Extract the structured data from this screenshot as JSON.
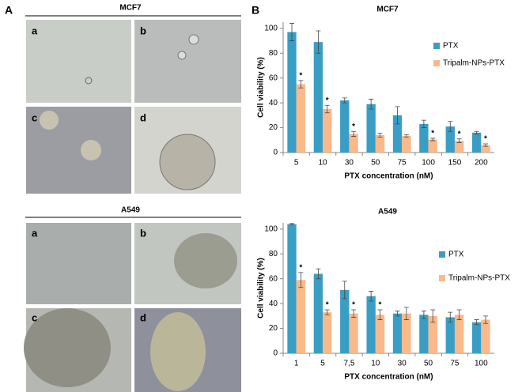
{
  "labels": {
    "a_panel": "A",
    "b_panel": "B"
  },
  "panels": [
    {
      "title": "MCF7",
      "images": [
        "a",
        "b",
        "c",
        "d"
      ]
    },
    {
      "title": "A549",
      "images": [
        "a",
        "b",
        "c",
        "d"
      ]
    }
  ],
  "chart_data": [
    {
      "type": "bar",
      "title": "MCF7",
      "x_label": "PTX concentration (nM)",
      "y_label": "Cell viability (%)",
      "categories": [
        "5",
        "10",
        "30",
        "50",
        "75",
        "100",
        "150",
        "200"
      ],
      "ylim": [
        0,
        105
      ],
      "yticks": [
        0,
        20,
        40,
        60,
        80,
        100
      ],
      "grid": false,
      "series": [
        {
          "name": "PTX",
          "color": "#3a9ec4",
          "values": [
            97,
            89,
            42,
            39,
            30,
            23,
            21,
            16
          ],
          "errors": [
            7,
            9,
            2,
            4,
            7,
            3,
            4,
            1
          ],
          "annotations": [
            null,
            null,
            null,
            null,
            null,
            null,
            null,
            null
          ]
        },
        {
          "name": "Tripalm-NPs-PTX",
          "color": "#f9b98a",
          "values": [
            55,
            35,
            15,
            14,
            13.5,
            10.5,
            9.5,
            6
          ],
          "errors": [
            3,
            3,
            2,
            1.5,
            1,
            1,
            1.5,
            1
          ],
          "annotations": [
            "*",
            "*",
            "*",
            null,
            null,
            "*",
            "*",
            "*"
          ]
        }
      ]
    },
    {
      "type": "bar",
      "title": "A549",
      "x_label": "PTX concentration (nM)",
      "y_label": "Cell viability (%)",
      "categories": [
        "1",
        "5",
        "7,5",
        "10",
        "30",
        "50",
        "75",
        "100"
      ],
      "ylim": [
        0,
        105
      ],
      "yticks": [
        0,
        20,
        40,
        60,
        80,
        100
      ],
      "grid": false,
      "series": [
        {
          "name": "PTX",
          "color": "#3a9ec4",
          "values": [
            104,
            64,
            51,
            46,
            32,
            31,
            29,
            25
          ],
          "errors": [
            0.5,
            4,
            7,
            4,
            2,
            3,
            4,
            2
          ],
          "annotations": [
            null,
            null,
            null,
            null,
            null,
            null,
            null,
            null
          ]
        },
        {
          "name": "Tripalm-NPs-PTX",
          "color": "#f9b98a",
          "values": [
            59,
            33,
            32,
            31,
            32,
            30,
            31,
            27
          ],
          "errors": [
            6,
            2,
            3,
            4,
            5,
            5,
            4,
            3
          ],
          "annotations": [
            "*",
            "*",
            "*",
            "*",
            null,
            null,
            null,
            null
          ]
        }
      ]
    }
  ]
}
